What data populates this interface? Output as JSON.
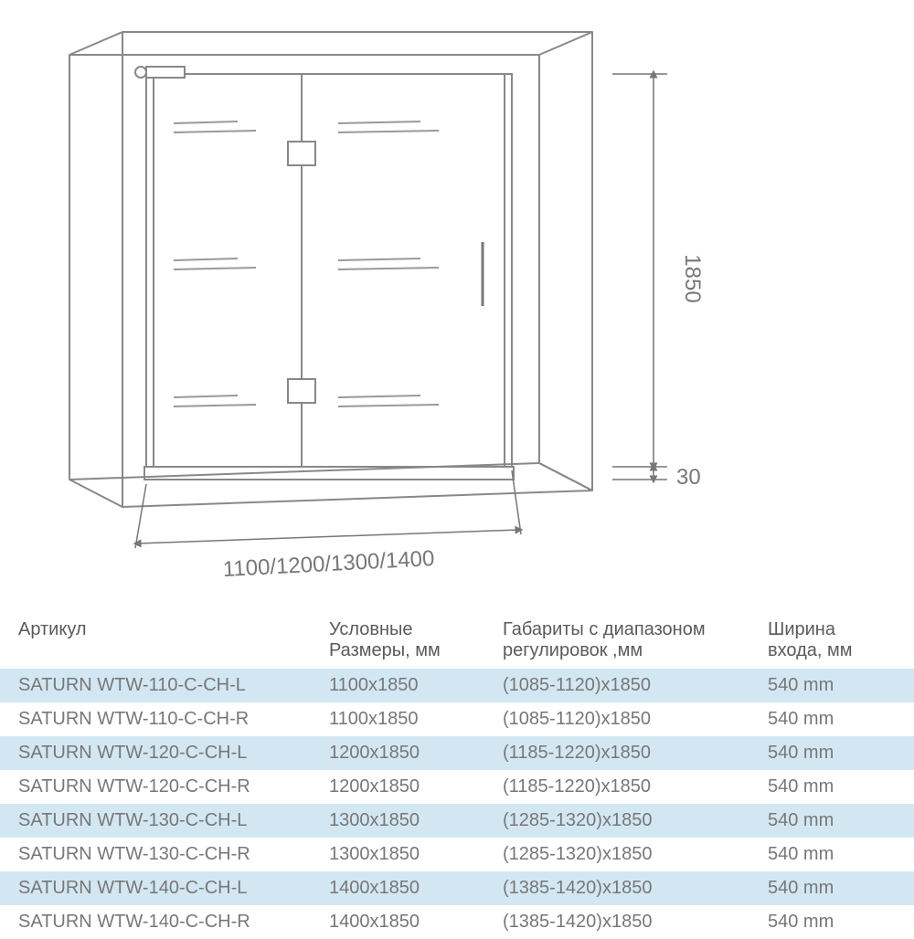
{
  "diagram": {
    "stroke": "#888888",
    "arrow": "#777777",
    "height_label": "1850",
    "clearance_label": "30",
    "width_label": "1100/1200/1300/1400"
  },
  "table": {
    "headers": [
      "Артикул",
      "Условные Размеры, мм",
      "Габариты с диапазоном регулировок ,мм",
      "Ширина входа, мм"
    ],
    "rows": [
      [
        "SATURN  WTW-110-C-CH-L",
        "1100x1850",
        "(1085-1120)x1850",
        "540 mm"
      ],
      [
        "SATURN  WTW-110-C-CH-R",
        "1100x1850",
        "(1085-1120)x1850",
        "540 mm"
      ],
      [
        "SATURN  WTW-120-C-CH-L",
        "1200x1850",
        "(1185-1220)x1850",
        "540 mm"
      ],
      [
        "SATURN  WTW-120-C-CH-R",
        "1200x1850",
        "(1185-1220)x1850",
        "540 mm"
      ],
      [
        "SATURN  WTW-130-C-CH-L",
        "1300x1850",
        "(1285-1320)x1850",
        "540 mm"
      ],
      [
        "SATURN  WTW-130-C-CH-R",
        "1300x1850",
        "(1285-1320)x1850",
        "540 mm"
      ],
      [
        "SATURN  WTW-140-C-CH-L",
        "1400x1850",
        "(1385-1420)x1850",
        "540 mm"
      ],
      [
        "SATURN  WTW-140-C-CH-R",
        "1400x1850",
        "(1385-1420)x1850",
        "540 mm"
      ]
    ],
    "stripe_color": "#d3e7f3",
    "text_color": "#666666",
    "font_size": 20
  }
}
